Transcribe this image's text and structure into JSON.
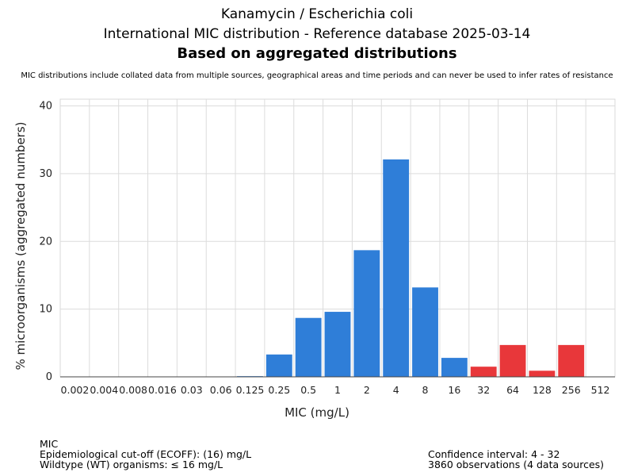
{
  "header": {
    "line1": "Kanamycin / Escherichia coli",
    "line2": "International MIC distribution - Reference database 2025-03-14",
    "line3": "Based on aggregated distributions",
    "note": "MIC distributions include collated data from multiple sources, geographical areas and time periods and can never be used to infer rates of resistance"
  },
  "chart_data": {
    "type": "bar",
    "xlabel": "MIC (mg/L)",
    "ylabel": "% microorganisms (aggregated numbers)",
    "ylim": [
      0,
      41
    ],
    "yticks": [
      0,
      10,
      20,
      30,
      40
    ],
    "grid": true,
    "categories": [
      "0.002",
      "0.004",
      "0.008",
      "0.016",
      "0.03",
      "0.06",
      "0.125",
      "0.25",
      "0.5",
      "1",
      "2",
      "4",
      "8",
      "16",
      "32",
      "64",
      "128",
      "256",
      "512"
    ],
    "values": [
      0,
      0,
      0,
      0,
      0,
      0,
      0.1,
      3.3,
      8.7,
      9.6,
      18.7,
      32.1,
      13.2,
      2.8,
      1.5,
      4.7,
      0.9,
      4.7,
      0
    ],
    "colors": [
      "#2f7ed8",
      "#2f7ed8",
      "#2f7ed8",
      "#2f7ed8",
      "#2f7ed8",
      "#2f7ed8",
      "#2f7ed8",
      "#2f7ed8",
      "#2f7ed8",
      "#2f7ed8",
      "#2f7ed8",
      "#2f7ed8",
      "#2f7ed8",
      "#2f7ed8",
      "#e8373a",
      "#e8373a",
      "#e8373a",
      "#e8373a",
      "#e8373a"
    ]
  },
  "footer": {
    "left": [
      "MIC",
      "Epidemiological cut-off (ECOFF): (16) mg/L",
      "Wildtype (WT) organisms: ≤ 16 mg/L"
    ],
    "right": [
      "Confidence interval: 4 - 32",
      "3860 observations (4 data sources)"
    ]
  }
}
